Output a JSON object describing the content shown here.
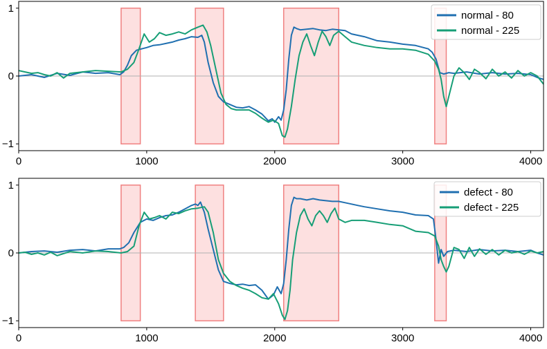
{
  "chart_data": [
    {
      "type": "line",
      "xlim": [
        0,
        4100
      ],
      "ylim": [
        -1.1,
        1.1
      ],
      "xticks": [
        0,
        1000,
        2000,
        3000,
        4000
      ],
      "yticks": [
        -1,
        0,
        1
      ],
      "xtick_labels": [
        "0",
        "1000",
        "2000",
        "3000",
        "4000"
      ],
      "ytick_labels": [
        "−1",
        "0",
        "1"
      ],
      "zero_line": true,
      "grid": false,
      "legend_position": "top-right",
      "highlight_regions": [
        [
          800,
          950
        ],
        [
          1380,
          1600
        ],
        [
          2070,
          2500
        ],
        [
          3250,
          3340
        ]
      ],
      "highlight_ylim": [
        -1,
        1
      ],
      "series": [
        {
          "name": "normal - 80",
          "color": "#1f6fb0",
          "x": [
            0,
            100,
            200,
            300,
            400,
            500,
            600,
            700,
            790,
            820,
            850,
            880,
            920,
            960,
            1000,
            1050,
            1100,
            1150,
            1200,
            1250,
            1300,
            1350,
            1400,
            1430,
            1450,
            1480,
            1520,
            1560,
            1600,
            1650,
            1700,
            1750,
            1800,
            1850,
            1900,
            1950,
            1980,
            2000,
            2030,
            2050,
            2070,
            2090,
            2110,
            2130,
            2150,
            2170,
            2200,
            2250,
            2300,
            2350,
            2400,
            2450,
            2500,
            2550,
            2600,
            2700,
            2800,
            2900,
            3000,
            3100,
            3200,
            3230,
            3260,
            3290,
            3320,
            3360,
            3400,
            3500,
            3600,
            3700,
            3800,
            3900,
            4000,
            4050,
            4100
          ],
          "y": [
            0.0,
            0.02,
            -0.02,
            0.04,
            0.01,
            0.06,
            0.04,
            0.05,
            0.02,
            0.06,
            0.16,
            0.3,
            0.38,
            0.4,
            0.42,
            0.45,
            0.46,
            0.48,
            0.5,
            0.53,
            0.55,
            0.58,
            0.57,
            0.6,
            0.5,
            0.2,
            -0.1,
            -0.3,
            -0.38,
            -0.42,
            -0.46,
            -0.47,
            -0.45,
            -0.5,
            -0.56,
            -0.66,
            -0.63,
            -0.68,
            -0.6,
            -0.65,
            -0.5,
            -0.2,
            0.25,
            0.6,
            0.72,
            0.7,
            0.68,
            0.69,
            0.7,
            0.68,
            0.67,
            0.69,
            0.68,
            0.67,
            0.62,
            0.58,
            0.52,
            0.5,
            0.47,
            0.45,
            0.4,
            0.35,
            0.25,
            0.05,
            0.03,
            0.05,
            0.04,
            0.06,
            0.03,
            0.05,
            0.03,
            0.04,
            0.02,
            -0.02,
            -0.05
          ]
        },
        {
          "name": "normal - 225",
          "color": "#169e76",
          "x": [
            0,
            50,
            100,
            150,
            200,
            250,
            300,
            350,
            400,
            500,
            600,
            700,
            800,
            850,
            900,
            940,
            980,
            1020,
            1060,
            1100,
            1150,
            1200,
            1250,
            1300,
            1350,
            1400,
            1440,
            1470,
            1500,
            1540,
            1580,
            1620,
            1660,
            1700,
            1750,
            1800,
            1850,
            1900,
            1950,
            1990,
            2030,
            2060,
            2080,
            2100,
            2130,
            2160,
            2190,
            2220,
            2250,
            2280,
            2310,
            2340,
            2370,
            2400,
            2430,
            2460,
            2500,
            2550,
            2600,
            2700,
            2800,
            2900,
            3000,
            3100,
            3200,
            3250,
            3280,
            3300,
            3320,
            3340,
            3360,
            3400,
            3440,
            3480,
            3520,
            3560,
            3600,
            3650,
            3700,
            3750,
            3800,
            3850,
            3900,
            3950,
            4000,
            4050,
            4100
          ],
          "y": [
            0.08,
            0.06,
            0.04,
            0.05,
            0.02,
            0.0,
            0.05,
            -0.03,
            0.04,
            0.06,
            0.08,
            0.07,
            0.06,
            0.1,
            0.2,
            0.4,
            0.62,
            0.5,
            0.55,
            0.64,
            0.6,
            0.62,
            0.65,
            0.62,
            0.68,
            0.72,
            0.75,
            0.65,
            0.45,
            0.1,
            -0.25,
            -0.42,
            -0.48,
            -0.5,
            -0.5,
            -0.5,
            -0.55,
            -0.62,
            -0.68,
            -0.65,
            -0.7,
            -0.88,
            -0.9,
            -0.78,
            -0.45,
            -0.05,
            0.3,
            0.5,
            0.62,
            0.45,
            0.3,
            0.5,
            0.66,
            0.58,
            0.45,
            0.6,
            0.66,
            0.58,
            0.5,
            0.45,
            0.42,
            0.4,
            0.4,
            0.38,
            0.32,
            0.22,
            0.1,
            -0.05,
            -0.3,
            -0.45,
            -0.3,
            0.0,
            0.12,
            0.05,
            -0.05,
            0.1,
            0.05,
            -0.04,
            0.1,
            0.0,
            0.06,
            -0.03,
            0.08,
            0.0,
            0.05,
            0.0,
            -0.12
          ]
        }
      ]
    },
    {
      "type": "line",
      "xlim": [
        0,
        4100
      ],
      "ylim": [
        -1.1,
        1.1
      ],
      "xticks": [
        0,
        1000,
        2000,
        3000,
        4000
      ],
      "yticks": [
        -1,
        0,
        1
      ],
      "xtick_labels": [
        "0",
        "1000",
        "2000",
        "3000",
        "4000"
      ],
      "ytick_labels": [
        "−1",
        "0",
        "1"
      ],
      "zero_line": true,
      "grid": false,
      "legend_position": "top-right",
      "highlight_regions": [
        [
          800,
          950
        ],
        [
          1380,
          1600
        ],
        [
          2070,
          2500
        ],
        [
          3250,
          3340
        ]
      ],
      "highlight_ylim": [
        -1,
        1
      ],
      "series": [
        {
          "name": "defect - 80",
          "color": "#1f6fb0",
          "x": [
            0,
            100,
            200,
            300,
            400,
            500,
            600,
            700,
            790,
            820,
            860,
            900,
            950,
            1000,
            1050,
            1100,
            1150,
            1200,
            1250,
            1300,
            1350,
            1380,
            1400,
            1420,
            1450,
            1480,
            1520,
            1560,
            1600,
            1650,
            1700,
            1750,
            1800,
            1850,
            1900,
            1950,
            1990,
            2020,
            2050,
            2070,
            2090,
            2110,
            2130,
            2150,
            2170,
            2200,
            2250,
            2300,
            2350,
            2400,
            2450,
            2500,
            2550,
            2600,
            2650,
            2700,
            2800,
            2900,
            3000,
            3100,
            3200,
            3240,
            3260,
            3280,
            3300,
            3320,
            3350,
            3400,
            3500,
            3600,
            3700,
            3800,
            3900,
            4000,
            4050,
            4100
          ],
          "y": [
            0.0,
            0.02,
            0.03,
            0.01,
            0.04,
            0.05,
            0.03,
            0.06,
            0.06,
            0.08,
            0.15,
            0.3,
            0.45,
            0.5,
            0.48,
            0.52,
            0.55,
            0.56,
            0.6,
            0.65,
            0.7,
            0.72,
            0.7,
            0.75,
            0.6,
            0.35,
            0.05,
            -0.25,
            -0.42,
            -0.45,
            -0.47,
            -0.46,
            -0.48,
            -0.47,
            -0.55,
            -0.68,
            -0.62,
            -0.5,
            -0.6,
            -0.45,
            -0.1,
            0.35,
            0.7,
            0.82,
            0.8,
            0.8,
            0.78,
            0.8,
            0.78,
            0.77,
            0.76,
            0.76,
            0.74,
            0.72,
            0.7,
            0.68,
            0.65,
            0.62,
            0.6,
            0.56,
            0.55,
            0.5,
            0.2,
            -0.15,
            0.05,
            -0.05,
            0.02,
            0.04,
            0.02,
            0.05,
            0.03,
            0.04,
            0.02,
            0.04,
            0.0,
            -0.03
          ]
        },
        {
          "name": "defect - 225",
          "color": "#169e76",
          "x": [
            0,
            50,
            100,
            150,
            200,
            250,
            300,
            400,
            500,
            600,
            700,
            800,
            850,
            900,
            940,
            980,
            1020,
            1060,
            1100,
            1150,
            1200,
            1250,
            1300,
            1350,
            1400,
            1450,
            1480,
            1520,
            1560,
            1600,
            1650,
            1700,
            1750,
            1800,
            1850,
            1900,
            1950,
            1990,
            2030,
            2060,
            2080,
            2100,
            2120,
            2140,
            2170,
            2200,
            2230,
            2260,
            2290,
            2320,
            2350,
            2380,
            2410,
            2440,
            2470,
            2500,
            2550,
            2600,
            2700,
            2800,
            2900,
            3000,
            3100,
            3200,
            3250,
            3280,
            3300,
            3320,
            3340,
            3360,
            3400,
            3440,
            3480,
            3520,
            3560,
            3600,
            3650,
            3700,
            3750,
            3800,
            3850,
            3900,
            3950,
            4000,
            4050,
            4100
          ],
          "y": [
            0.0,
            0.01,
            -0.02,
            0.0,
            -0.03,
            0.01,
            -0.04,
            0.02,
            0.0,
            0.03,
            0.02,
            0.0,
            0.02,
            0.1,
            0.4,
            0.6,
            0.5,
            0.52,
            0.55,
            0.5,
            0.6,
            0.58,
            0.62,
            0.65,
            0.66,
            0.68,
            0.6,
            0.3,
            -0.1,
            -0.3,
            -0.42,
            -0.48,
            -0.52,
            -0.55,
            -0.6,
            -0.66,
            -0.68,
            -0.6,
            -0.75,
            -0.92,
            -0.98,
            -0.85,
            -0.55,
            -0.1,
            0.3,
            0.55,
            0.65,
            0.5,
            0.4,
            0.55,
            0.62,
            0.55,
            0.45,
            0.58,
            0.66,
            0.5,
            0.45,
            0.48,
            0.48,
            0.45,
            0.42,
            0.4,
            0.32,
            0.3,
            0.25,
            0.1,
            -0.1,
            -0.2,
            -0.28,
            -0.2,
            0.08,
            0.05,
            -0.08,
            0.08,
            -0.05,
            0.06,
            -0.02,
            0.05,
            -0.03,
            0.04,
            0.0,
            0.02,
            -0.02,
            0.03,
            0.0,
            0.02
          ]
        }
      ]
    }
  ]
}
